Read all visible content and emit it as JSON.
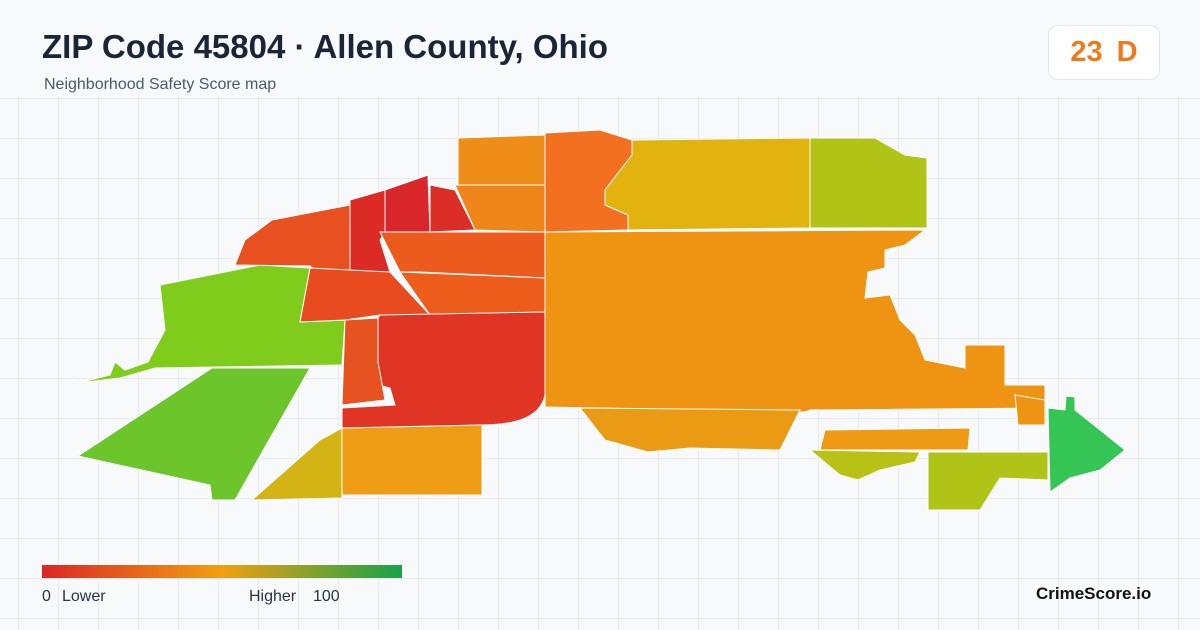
{
  "header": {
    "title": "ZIP Code 45804 · Allen County, Ohio",
    "subtitle": "Neighborhood Safety Score map"
  },
  "score": {
    "value": 23,
    "grade": "D"
  },
  "legend": {
    "min": 0,
    "min_label": "Lower",
    "max_label": "Higher",
    "max": 100
  },
  "brand": "CrimeScore.io"
}
